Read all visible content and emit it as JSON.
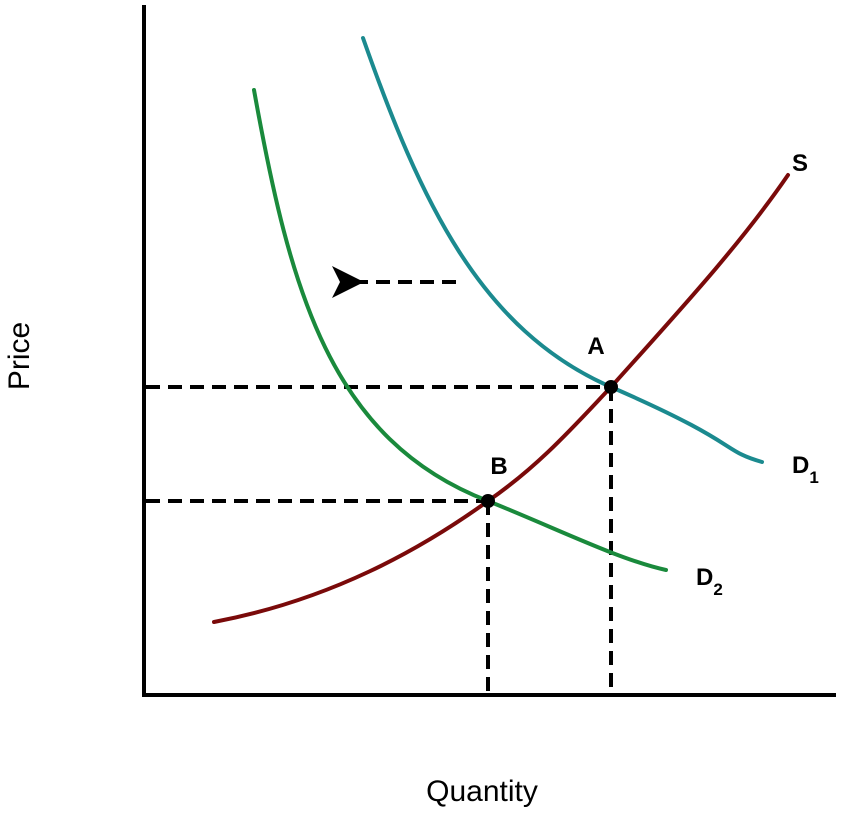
{
  "axes": {
    "x_label": "Quantity",
    "y_label": "Price"
  },
  "curves": {
    "supply": {
      "label": "S",
      "color": "#7a0a0a"
    },
    "demand_1": {
      "label": "D",
      "subscript": "1",
      "color": "#1b8a8f"
    },
    "demand_2": {
      "label": "D",
      "subscript": "2",
      "color": "#1a8a3c"
    }
  },
  "points": {
    "a": {
      "label": "A"
    },
    "b": {
      "label": "B"
    }
  },
  "shift_arrow": {
    "direction": "left",
    "style": "dashed"
  }
}
